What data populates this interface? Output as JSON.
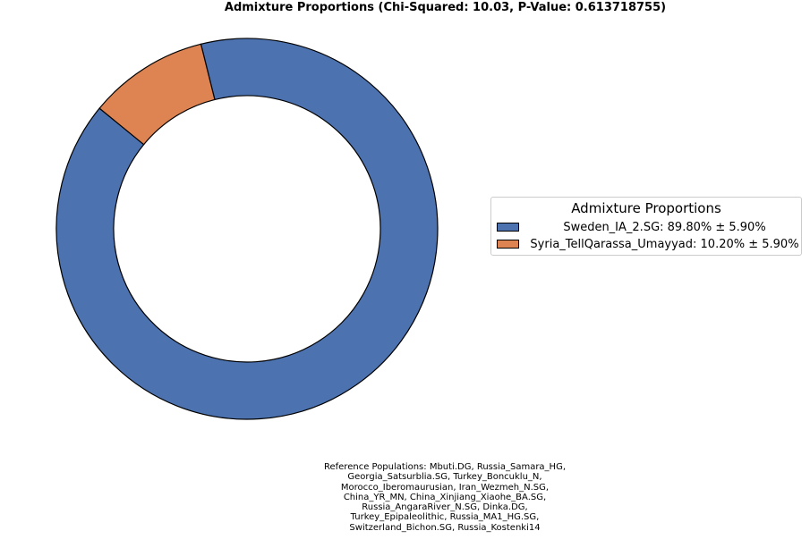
{
  "chart_data": {
    "type": "pie",
    "style": "donut",
    "title": "Admixture Proportions (Chi-Squared: 10.03, P-Value: 0.613718755)",
    "categories": [
      "Sweden_IA_2.SG",
      "Syria_TellQarassa_Umayyad"
    ],
    "values": [
      89.8,
      10.2
    ],
    "errors": [
      5.9,
      5.9
    ],
    "colors": [
      "#4c72b0",
      "#dd8452"
    ],
    "legend": {
      "title": "Admixture Proportions",
      "placement": "center-right",
      "entries": [
        "Sweden_IA_2.SG: 89.80% ± 5.90%",
        "Syria_TellQarassa_Umayyad: 10.20% ± 5.90%"
      ]
    }
  },
  "footnote": {
    "lines": [
      "Reference Populations: Mbuti.DG,      Russia_Samara_HG,",
      "Georgia_Satsurblia.SG,     Turkey_Boncuklu_N,",
      "Morocco_Iberomaurusian,     Iran_Wezmeh_N.SG,",
      "China_YR_MN, China_Xinjiang_Xiaohe_BA.SG,",
      "Russia_AngaraRiver_N.SG,          Dinka.DG,",
      "Turkey_Epipaleolithic,     Russia_MA1_HG.SG,",
      "Switzerland_Bichon.SG,    Russia_Kostenki14"
    ]
  }
}
